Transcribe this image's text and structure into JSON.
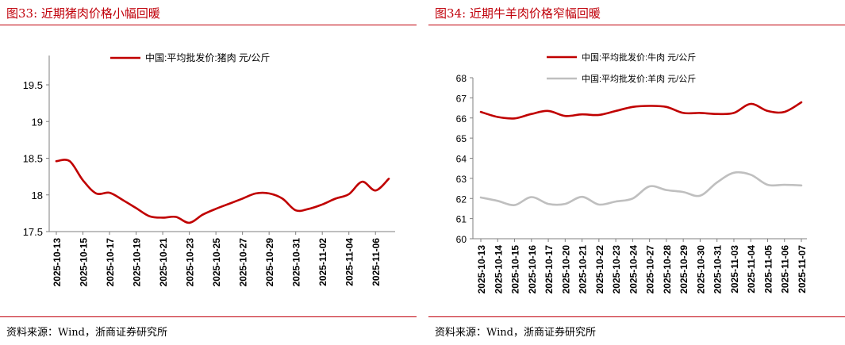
{
  "left_figure": {
    "title": "图33:  近期猪肉价格小幅回暖",
    "source": "资料来源：Wind，浙商证券研究所"
  },
  "right_figure": {
    "title": "图34:  近期牛羊肉价格窄幅回暖",
    "source": "资料来源：Wind，浙商证券研究所"
  },
  "colors": {
    "accent": "#c0000a",
    "series_red": "#c00000",
    "series_gray": "#bfbfbf"
  },
  "chart_data": [
    {
      "type": "line",
      "x": [
        "2025-10-13",
        "2025-10-14",
        "2025-10-15",
        "2025-10-16",
        "2025-10-17",
        "2025-10-18",
        "2025-10-19",
        "2025-10-20",
        "2025-10-21",
        "2025-10-22",
        "2025-10-23",
        "2025-10-24",
        "2025-10-25",
        "2025-10-26",
        "2025-10-27",
        "2025-10-28",
        "2025-10-29",
        "2025-10-30",
        "2025-10-31",
        "2025-11-01",
        "2025-11-02",
        "2025-11-03",
        "2025-11-04",
        "2025-11-05",
        "2025-11-06",
        "2025-11-07"
      ],
      "xticks": [
        "2025-10-13",
        "2025-10-15",
        "2025-10-17",
        "2025-10-19",
        "2025-10-21",
        "2025-10-23",
        "2025-10-25",
        "2025-10-27",
        "2025-10-29",
        "2025-10-31",
        "2025-11-02",
        "2025-11-04",
        "2025-11-06"
      ],
      "yticks": [
        "17.5",
        "18",
        "18.5",
        "19",
        "19.5"
      ],
      "ylim": [
        17.5,
        19.9
      ],
      "series": [
        {
          "name": "中国:平均批发价:猪肉 元/公斤",
          "values": [
            18.46,
            18.46,
            18.2,
            18.02,
            18.03,
            17.93,
            17.82,
            17.71,
            17.69,
            17.7,
            17.62,
            17.73,
            17.81,
            17.88,
            17.95,
            18.02,
            18.02,
            17.95,
            17.79,
            17.81,
            17.87,
            17.95,
            18.01,
            18.18,
            18.06,
            18.22
          ]
        }
      ]
    },
    {
      "type": "line",
      "x": [
        "2025-10-13",
        "2025-10-14",
        "2025-10-15",
        "2025-10-16",
        "2025-10-17",
        "2025-10-20",
        "2025-10-21",
        "2025-10-22",
        "2025-10-23",
        "2025-10-24",
        "2025-10-27",
        "2025-10-28",
        "2025-10-29",
        "2025-10-30",
        "2025-10-31",
        "2025-11-03",
        "2025-11-04",
        "2025-11-05",
        "2025-11-06",
        "2025-11-07"
      ],
      "xticks": [
        "2025-10-13",
        "2025-10-14",
        "2025-10-15",
        "2025-10-16",
        "2025-10-17",
        "2025-10-20",
        "2025-10-21",
        "2025-10-22",
        "2025-10-23",
        "2025-10-24",
        "2025-10-27",
        "2025-10-28",
        "2025-10-29",
        "2025-10-30",
        "2025-10-31",
        "2025-11-03",
        "2025-11-04",
        "2025-11-05",
        "2025-11-06",
        "2025-11-07"
      ],
      "yticks": [
        "60",
        "61",
        "62",
        "63",
        "64",
        "65",
        "66",
        "67",
        "68"
      ],
      "ylim": [
        60,
        68
      ],
      "series": [
        {
          "name": "中国:平均批发价:牛肉 元/公斤",
          "values": [
            66.3,
            66.05,
            65.98,
            66.2,
            66.35,
            66.1,
            66.18,
            66.15,
            66.35,
            66.55,
            66.6,
            66.55,
            66.25,
            66.25,
            66.2,
            66.25,
            66.7,
            66.35,
            66.3,
            66.78
          ]
        },
        {
          "name": "中国:平均批发价:羊肉 元/公斤",
          "values": [
            62.05,
            61.88,
            61.67,
            62.07,
            61.73,
            61.73,
            62.08,
            61.7,
            61.85,
            62.0,
            62.6,
            62.42,
            62.32,
            62.14,
            62.8,
            63.28,
            63.18,
            62.68,
            62.68,
            62.65
          ]
        }
      ]
    }
  ]
}
